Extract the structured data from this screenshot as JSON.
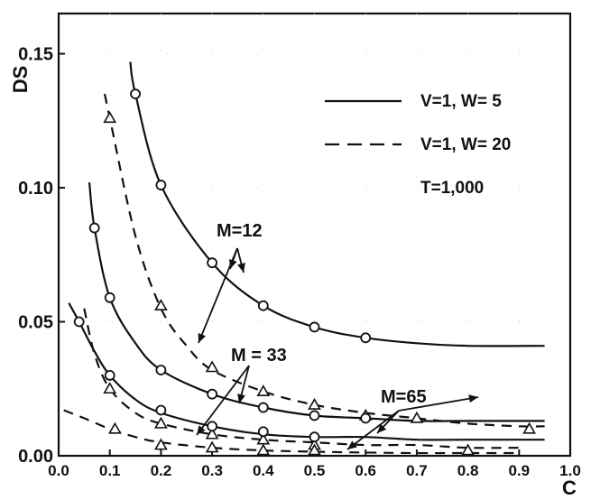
{
  "chart_data": {
    "type": "line",
    "xlabel": "C",
    "ylabel": "DS",
    "xlim": [
      0,
      1.0
    ],
    "ylim": [
      0,
      0.165
    ],
    "x_ticks": [
      "0.0",
      "0.1",
      "0.2",
      "0.3",
      "0.4",
      "0.5",
      "0.6",
      "0.7",
      "0.8",
      "0.9",
      "1.0"
    ],
    "y_ticks": [
      "0.00",
      "0.05",
      "0.10",
      "0.15"
    ],
    "legend": {
      "placement": "top-right",
      "entries": [
        {
          "label": "V=1, W= 5",
          "style": "solid"
        },
        {
          "label": "V=1, W= 20",
          "style": "dashed"
        }
      ],
      "note": "T=1,000"
    },
    "annotations": [
      {
        "label": "M=12"
      },
      {
        "label": "M = 33"
      },
      {
        "label": "M=65"
      }
    ],
    "series": [
      {
        "group": "M=12",
        "style": "solid",
        "marker": "circle",
        "curve": {
          "x": [
            0.14,
            0.15,
            0.2,
            0.3,
            0.4,
            0.5,
            0.6,
            0.7,
            0.8,
            0.95
          ],
          "y": [
            0.147,
            0.135,
            0.101,
            0.072,
            0.056,
            0.048,
            0.044,
            0.042,
            0.041,
            0.041
          ]
        },
        "points": {
          "x": [
            0.15,
            0.2,
            0.3,
            0.4,
            0.5,
            0.6
          ],
          "y": [
            0.135,
            0.101,
            0.072,
            0.056,
            0.048,
            0.044
          ]
        }
      },
      {
        "group": "M=12",
        "style": "dashed",
        "marker": "triangle",
        "curve": {
          "x": [
            0.09,
            0.1,
            0.15,
            0.2,
            0.25,
            0.3,
            0.4,
            0.5,
            0.6,
            0.7,
            0.8,
            0.9,
            0.95
          ],
          "y": [
            0.135,
            0.126,
            0.082,
            0.055,
            0.041,
            0.032,
            0.024,
            0.019,
            0.016,
            0.014,
            0.012,
            0.011,
            0.011
          ]
        },
        "points": {
          "x": [
            0.1,
            0.2,
            0.3,
            0.4,
            0.5,
            0.6,
            0.7,
            0.92
          ],
          "y": [
            0.126,
            0.056,
            0.033,
            0.024,
            0.019,
            0.015,
            0.014,
            0.01
          ]
        }
      },
      {
        "group": "M=33",
        "style": "solid",
        "marker": "circle",
        "curve": {
          "x": [
            0.06,
            0.07,
            0.1,
            0.15,
            0.2,
            0.3,
            0.4,
            0.5,
            0.6,
            0.7,
            0.8,
            0.95
          ],
          "y": [
            0.102,
            0.085,
            0.059,
            0.042,
            0.032,
            0.023,
            0.018,
            0.015,
            0.014,
            0.013,
            0.013,
            0.013
          ]
        },
        "points": {
          "x": [
            0.07,
            0.1,
            0.2,
            0.3,
            0.4,
            0.5,
            0.6
          ],
          "y": [
            0.085,
            0.059,
            0.032,
            0.023,
            0.018,
            0.015,
            0.014
          ]
        }
      },
      {
        "group": "M=33",
        "style": "dashed",
        "marker": "triangle",
        "curve": {
          "x": [
            0.05,
            0.07,
            0.1,
            0.15,
            0.2,
            0.3,
            0.4,
            0.5,
            0.6,
            0.7,
            0.8,
            0.9
          ],
          "y": [
            0.055,
            0.038,
            0.025,
            0.016,
            0.012,
            0.008,
            0.006,
            0.005,
            0.004,
            0.004,
            0.003,
            0.003
          ]
        },
        "points": {
          "x": [
            0.1,
            0.2,
            0.3,
            0.4,
            0.5
          ],
          "y": [
            0.025,
            0.012,
            0.008,
            0.006,
            0.004
          ]
        }
      },
      {
        "group": "M=65",
        "style": "solid",
        "marker": "circle",
        "curve": {
          "x": [
            0.02,
            0.04,
            0.07,
            0.1,
            0.15,
            0.2,
            0.3,
            0.4,
            0.5,
            0.6,
            0.7,
            0.8,
            0.95
          ],
          "y": [
            0.057,
            0.05,
            0.039,
            0.03,
            0.021,
            0.016,
            0.011,
            0.008,
            0.007,
            0.007,
            0.006,
            0.006,
            0.006
          ]
        },
        "points": {
          "x": [
            0.04,
            0.1,
            0.2,
            0.3,
            0.4,
            0.5
          ],
          "y": [
            0.05,
            0.03,
            0.017,
            0.011,
            0.009,
            0.007
          ]
        }
      },
      {
        "group": "M=65",
        "style": "dashed",
        "marker": "triangle",
        "curve": {
          "x": [
            0.01,
            0.05,
            0.1,
            0.15,
            0.2,
            0.3,
            0.4,
            0.5,
            0.6,
            0.7,
            0.8,
            0.9
          ],
          "y": [
            0.017,
            0.014,
            0.01,
            0.007,
            0.005,
            0.003,
            0.002,
            0.0015,
            0.0012,
            0.001,
            0.001,
            0.001
          ]
        },
        "points": {
          "x": [
            0.11,
            0.2,
            0.3,
            0.4,
            0.5,
            0.8
          ],
          "y": [
            0.01,
            0.004,
            0.003,
            0.002,
            0.002,
            0.002
          ]
        }
      }
    ]
  }
}
